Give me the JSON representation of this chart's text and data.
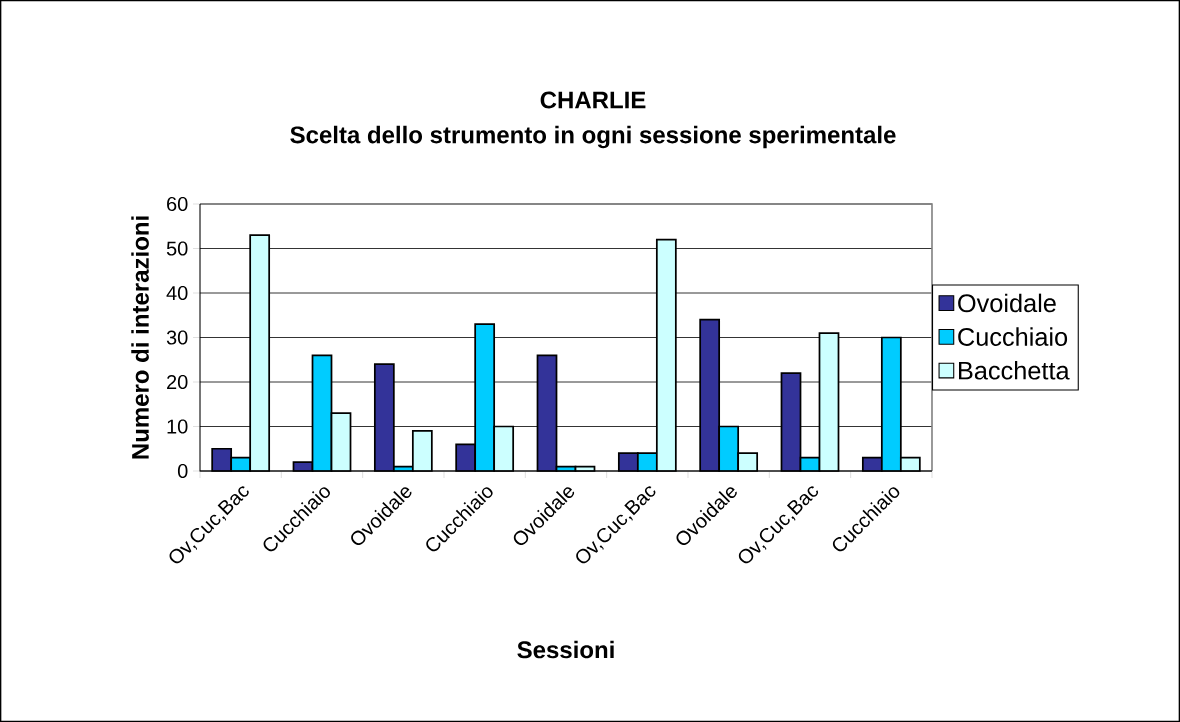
{
  "chart_data": {
    "type": "bar",
    "title": "CHARLIE",
    "subtitle": "Scelta dello strumento in ogni sessione sperimentale",
    "xlabel": "Sessioni",
    "ylabel": "Numero di interazioni",
    "categories": [
      "Ov,Cuc,Bac",
      "Cucchiaio",
      "Ovoidale",
      "Cucchiaio",
      "Ovoidale",
      "Ov,Cuc,Bac",
      "Ovoidale",
      "Ov,Cuc,Bac",
      "Cucchiaio"
    ],
    "series": [
      {
        "name": "Ovoidale",
        "color": "#333399",
        "values": [
          5,
          2,
          24,
          6,
          26,
          4,
          34,
          22,
          3
        ]
      },
      {
        "name": "Cucchiaio",
        "color": "#00ccff",
        "values": [
          3,
          26,
          1,
          33,
          1,
          4,
          10,
          3,
          30
        ]
      },
      {
        "name": "Bacchetta",
        "color": "#ccffff",
        "values": [
          53,
          13,
          9,
          10,
          1,
          52,
          4,
          31,
          3
        ]
      }
    ],
    "ylim": [
      0,
      60
    ],
    "yticks": [
      0,
      10,
      20,
      30,
      40,
      50,
      60
    ],
    "grid": "y",
    "legend": "right"
  }
}
